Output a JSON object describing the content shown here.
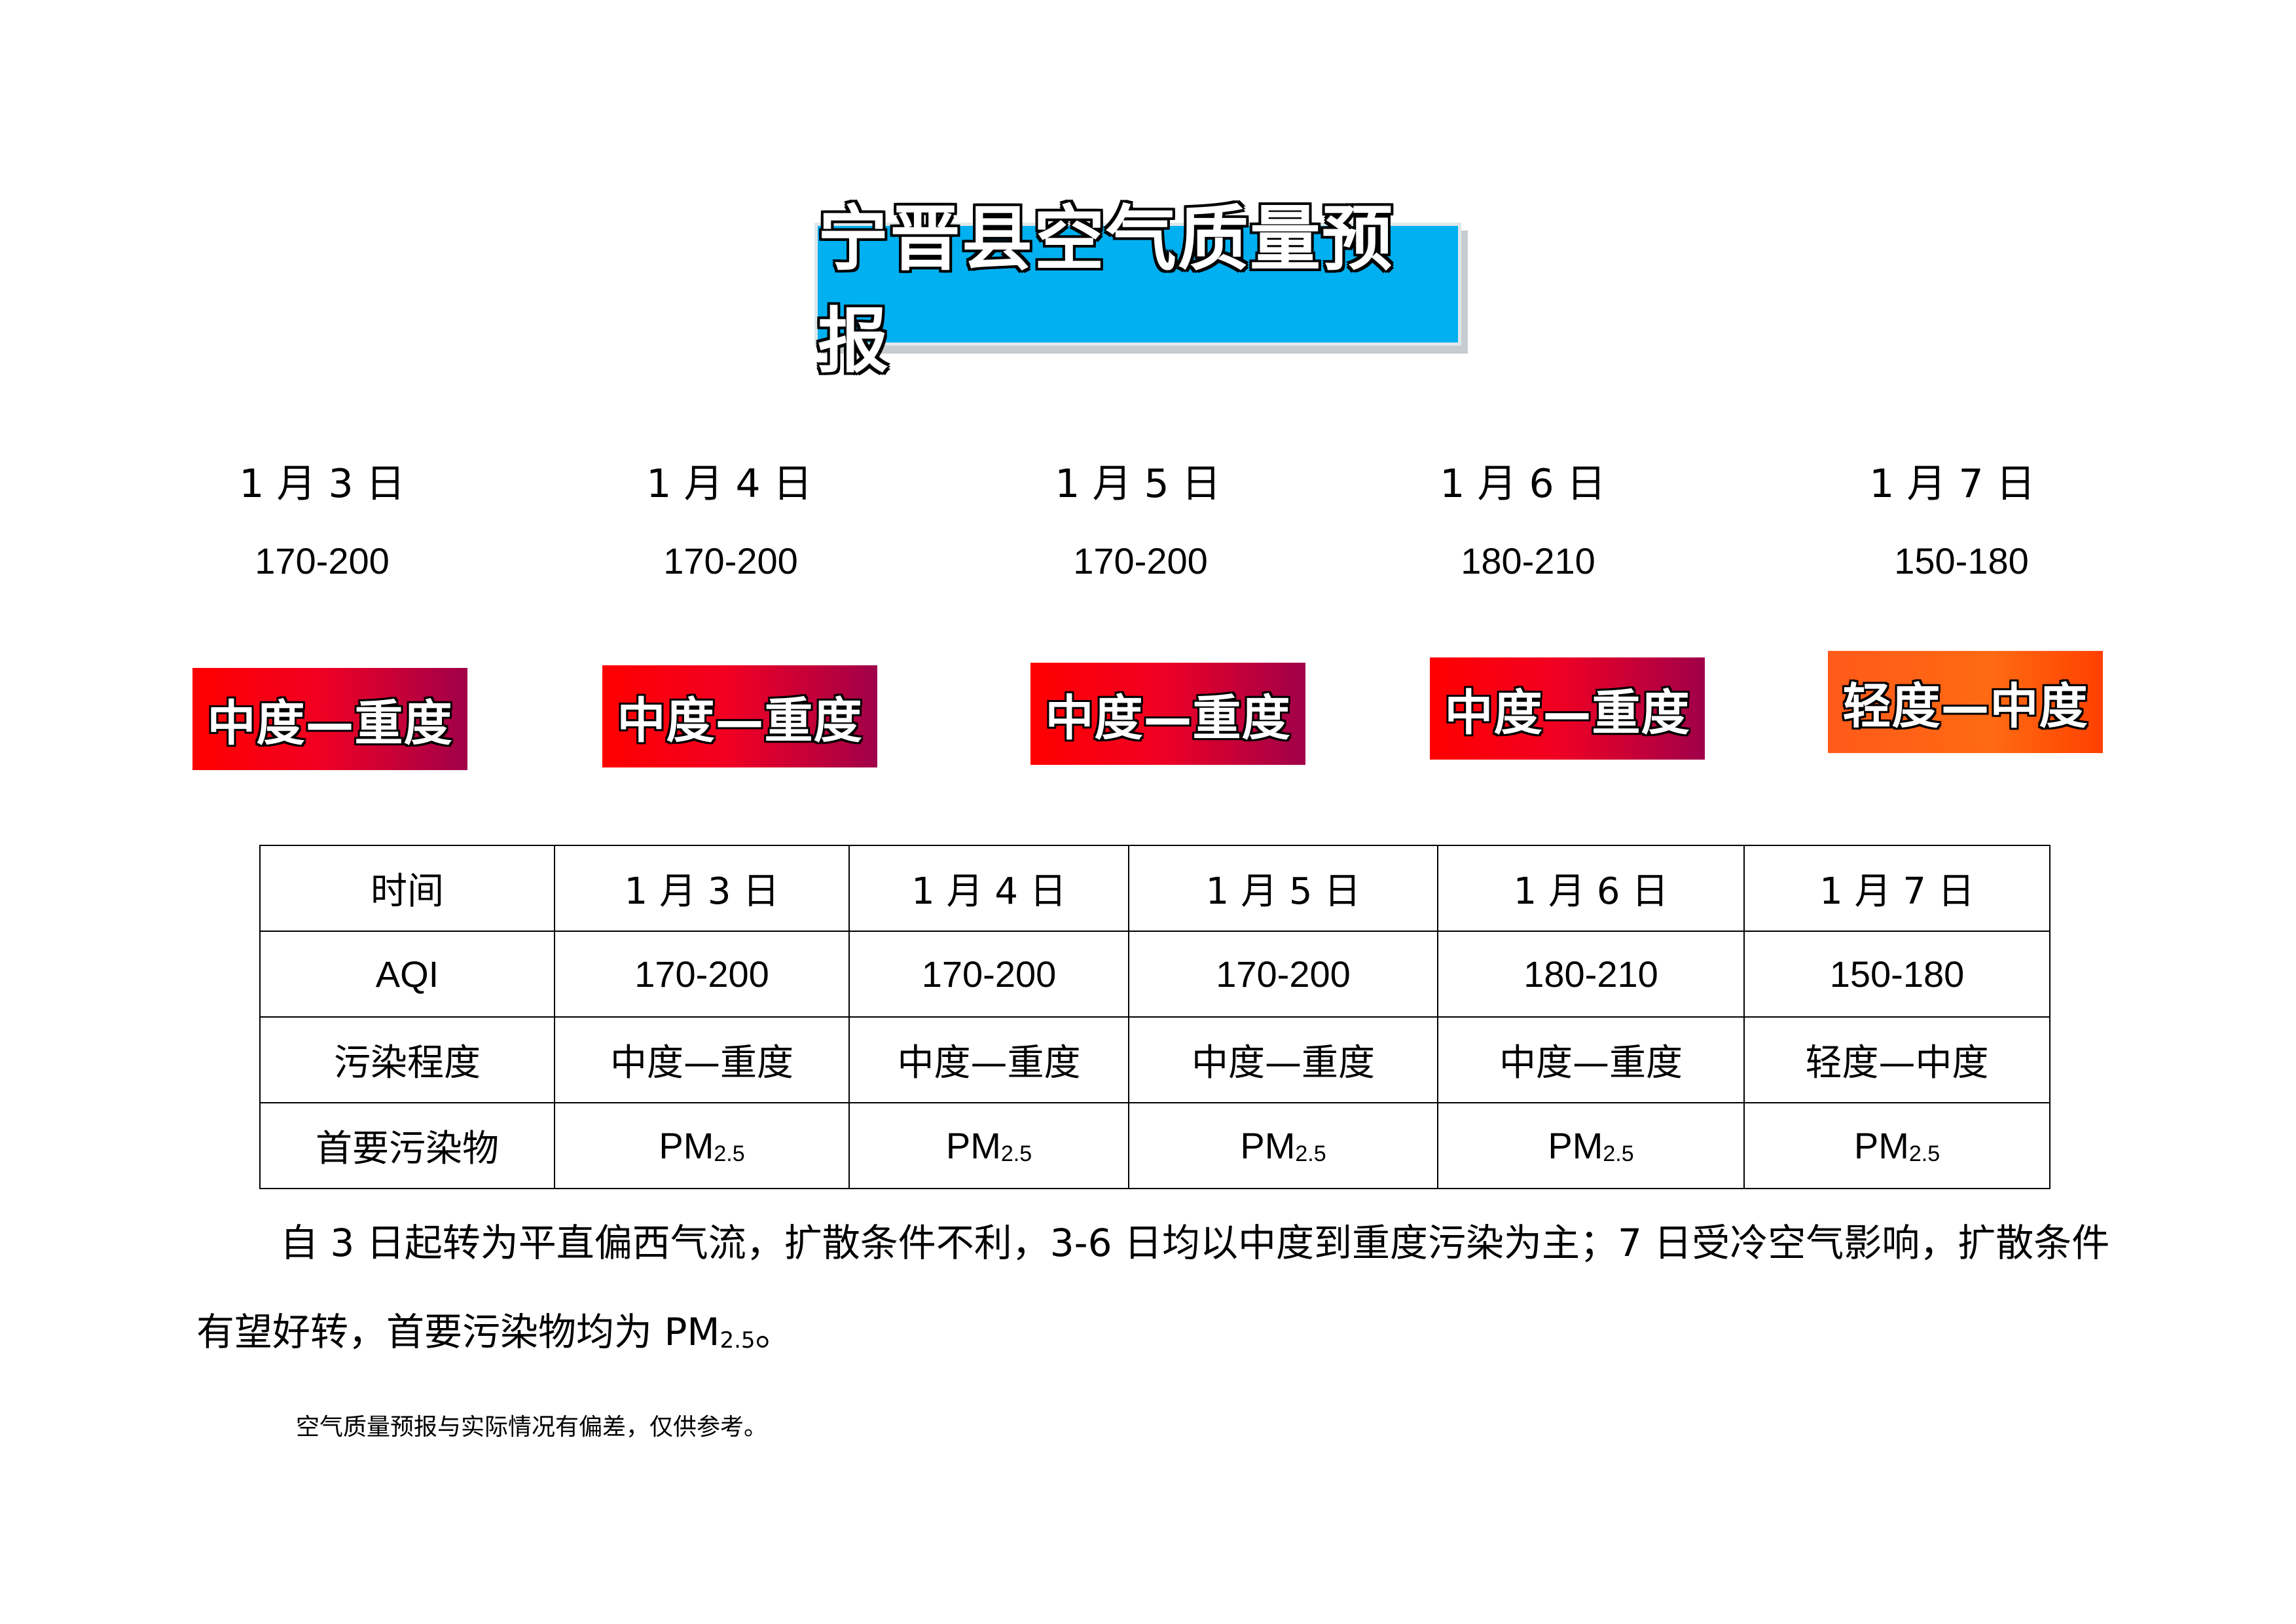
{
  "title": "宁晋县空气质量预报",
  "days": [
    {
      "date": "1 月 3 日",
      "aqi": "170-200",
      "level": "中度—重度",
      "pollutant": "PM",
      "pollutant_sub": "2.5",
      "level_color": "red"
    },
    {
      "date": "1 月 4 日",
      "aqi": "170-200",
      "level": "中度—重度",
      "pollutant": "PM",
      "pollutant_sub": "2.5",
      "level_color": "red"
    },
    {
      "date": "1 月 5 日",
      "aqi": "170-200",
      "level": "中度—重度",
      "pollutant": "PM",
      "pollutant_sub": "2.5",
      "level_color": "red"
    },
    {
      "date": "1 月 6 日",
      "aqi": "180-210",
      "level": "中度—重度",
      "pollutant": "PM",
      "pollutant_sub": "2.5",
      "level_color": "red"
    },
    {
      "date": "1 月 7 日",
      "aqi": "150-180",
      "level": "轻度—中度",
      "pollutant": "PM",
      "pollutant_sub": "2.5",
      "level_color": "orange"
    }
  ],
  "table": {
    "row_headers": [
      "时间",
      "AQI",
      "污染程度",
      "首要污染物"
    ]
  },
  "summary": {
    "text": "自 3 日起转为平直偏西气流，扩散条件不利，3-6 日均以中度到重度污染为主；7 日受冷空气影响，扩散条件有望好转，首要污染物均为 PM",
    "sub": "2.5",
    "end": "。"
  },
  "note": "空气质量预报与实际情况有偏差，仅供参考。",
  "colors": {
    "title_bg": "#00b0f0",
    "badge_red_start": "#ff0000",
    "badge_red_end": "#a0004a",
    "badge_orange": "#ff5a1a"
  }
}
